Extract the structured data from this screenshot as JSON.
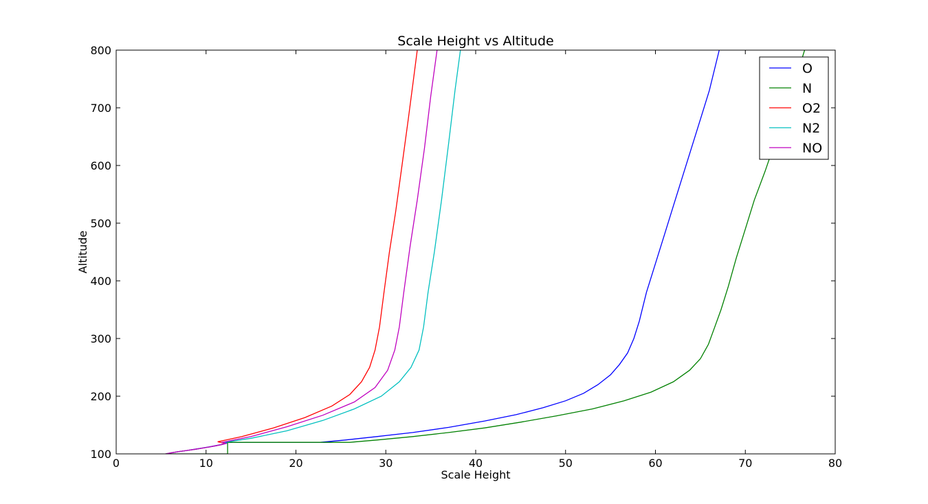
{
  "chart_data": {
    "type": "line",
    "title": "Scale Height vs Altitude",
    "xlabel": "Scale Height",
    "ylabel": "Altitude",
    "xlim": [
      0,
      80
    ],
    "ylim": [
      100,
      800
    ],
    "xticks": [
      0,
      10,
      20,
      30,
      40,
      50,
      60,
      70,
      80
    ],
    "yticks": [
      100,
      200,
      300,
      400,
      500,
      600,
      700,
      800
    ],
    "grid": false,
    "legend_position": "top-right",
    "series": [
      {
        "name": "O",
        "color": "#0000ff",
        "points": [
          [
            5.6,
            100
          ],
          [
            6.2,
            102
          ],
          [
            7.0,
            104
          ],
          [
            7.9,
            106
          ],
          [
            8.7,
            108
          ],
          [
            9.5,
            110
          ],
          [
            10.3,
            112
          ],
          [
            11.0,
            114
          ],
          [
            11.6,
            116
          ],
          [
            12.1,
            118
          ],
          [
            12.4,
            120
          ],
          [
            22.7,
            120
          ],
          [
            25.5,
            124
          ],
          [
            29.0,
            130
          ],
          [
            33.0,
            137
          ],
          [
            37.0,
            146
          ],
          [
            41.0,
            157
          ],
          [
            44.5,
            168
          ],
          [
            47.5,
            180
          ],
          [
            50.0,
            192
          ],
          [
            52.0,
            205
          ],
          [
            53.6,
            220
          ],
          [
            55.0,
            237
          ],
          [
            56.0,
            255
          ],
          [
            56.9,
            275
          ],
          [
            57.6,
            300
          ],
          [
            58.2,
            330
          ],
          [
            59.0,
            380
          ],
          [
            60.0,
            430
          ],
          [
            61.0,
            480
          ],
          [
            62.0,
            530
          ],
          [
            63.0,
            580
          ],
          [
            64.0,
            630
          ],
          [
            65.0,
            680
          ],
          [
            66.0,
            730
          ],
          [
            67.1,
            800
          ]
        ]
      },
      {
        "name": "N",
        "color": "#008000",
        "points": [
          [
            5.8,
            100
          ],
          [
            12.4,
            100
          ],
          [
            12.4,
            120
          ],
          [
            26.0,
            120
          ],
          [
            29.0,
            124
          ],
          [
            33.0,
            130
          ],
          [
            37.0,
            137
          ],
          [
            41.0,
            145
          ],
          [
            45.0,
            155
          ],
          [
            49.0,
            166
          ],
          [
            53.0,
            178
          ],
          [
            56.5,
            192
          ],
          [
            59.5,
            207
          ],
          [
            62.0,
            225
          ],
          [
            63.8,
            245
          ],
          [
            65.0,
            265
          ],
          [
            65.9,
            290
          ],
          [
            66.6,
            320
          ],
          [
            67.3,
            350
          ],
          [
            68.1,
            390
          ],
          [
            69.0,
            440
          ],
          [
            70.0,
            490
          ],
          [
            71.0,
            540
          ],
          [
            72.2,
            590
          ],
          [
            73.3,
            640
          ],
          [
            74.5,
            700
          ],
          [
            75.6,
            750
          ],
          [
            76.6,
            800
          ]
        ]
      },
      {
        "name": "O2",
        "color": "#ff0000",
        "points": [
          [
            5.5,
            100
          ],
          [
            6.2,
            102
          ],
          [
            7.0,
            104
          ],
          [
            7.9,
            106
          ],
          [
            8.8,
            108
          ],
          [
            9.6,
            110
          ],
          [
            10.4,
            112
          ],
          [
            11.1,
            114
          ],
          [
            11.7,
            116
          ],
          [
            12.2,
            118
          ],
          [
            11.3,
            121
          ],
          [
            14.0,
            130
          ],
          [
            17.5,
            145
          ],
          [
            21.0,
            163
          ],
          [
            24.0,
            183
          ],
          [
            26.0,
            203
          ],
          [
            27.3,
            225
          ],
          [
            28.2,
            250
          ],
          [
            28.8,
            280
          ],
          [
            29.3,
            320
          ],
          [
            29.8,
            380
          ],
          [
            30.4,
            450
          ],
          [
            31.1,
            520
          ],
          [
            31.8,
            600
          ],
          [
            32.5,
            680
          ],
          [
            33.0,
            740
          ],
          [
            33.5,
            800
          ]
        ]
      },
      {
        "name": "N2",
        "color": "#00bfbf",
        "points": [
          [
            5.5,
            100
          ],
          [
            6.2,
            102
          ],
          [
            7.0,
            104
          ],
          [
            7.9,
            106
          ],
          [
            8.8,
            108
          ],
          [
            9.6,
            110
          ],
          [
            10.4,
            112
          ],
          [
            11.1,
            114
          ],
          [
            11.7,
            116
          ],
          [
            12.2,
            118
          ],
          [
            12.1,
            120
          ],
          [
            15.0,
            127
          ],
          [
            19.0,
            140
          ],
          [
            23.0,
            158
          ],
          [
            26.5,
            178
          ],
          [
            29.5,
            200
          ],
          [
            31.5,
            225
          ],
          [
            32.8,
            250
          ],
          [
            33.7,
            280
          ],
          [
            34.2,
            320
          ],
          [
            34.7,
            380
          ],
          [
            35.4,
            450
          ],
          [
            36.2,
            540
          ],
          [
            37.0,
            640
          ],
          [
            37.7,
            730
          ],
          [
            38.3,
            800
          ]
        ]
      },
      {
        "name": "NO",
        "color": "#bf00bf",
        "points": [
          [
            5.5,
            100
          ],
          [
            6.2,
            102
          ],
          [
            7.0,
            104
          ],
          [
            7.9,
            106
          ],
          [
            8.8,
            108
          ],
          [
            9.6,
            110
          ],
          [
            10.4,
            112
          ],
          [
            11.1,
            114
          ],
          [
            11.7,
            116
          ],
          [
            12.2,
            118
          ],
          [
            11.8,
            120
          ],
          [
            15.0,
            130
          ],
          [
            19.0,
            147
          ],
          [
            23.0,
            167
          ],
          [
            26.5,
            190
          ],
          [
            28.8,
            215
          ],
          [
            30.2,
            245
          ],
          [
            31.0,
            280
          ],
          [
            31.5,
            320
          ],
          [
            32.0,
            380
          ],
          [
            32.7,
            460
          ],
          [
            33.5,
            540
          ],
          [
            34.3,
            630
          ],
          [
            35.0,
            720
          ],
          [
            35.7,
            800
          ]
        ]
      }
    ]
  }
}
